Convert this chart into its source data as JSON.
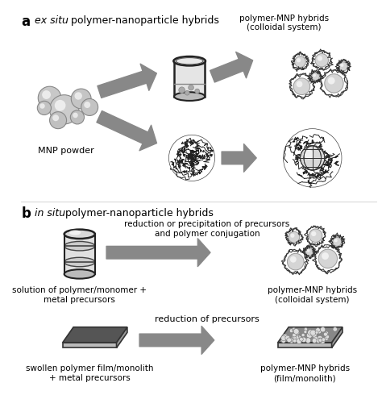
{
  "label_a": "a",
  "label_b": "b",
  "title_a_italic": "ex situ",
  "title_a_rest": " polymer-nanoparticle hybrids",
  "title_b_italic": "in situ",
  "title_b_rest": " polymer-nanoparticle hybrids",
  "label_mnp": "MNP powder",
  "label_colloidal_a": "polymer-MNP hybrids\n(colloidal system)",
  "label_solution": "solution of polymer/monomer +\nmetal precursors",
  "label_colloidal_b": "polymer-MNP hybrids\n(colloidal system)",
  "label_reduction": "reduction or precipitation of precursors\nand polymer conjugation",
  "label_film_in": "swollen polymer film/monolith\n+ metal precursors",
  "label_film_out": "polymer-MNP hybrids\n(film/monolith)",
  "label_reduction2": "reduction of precursors",
  "bg_color": "#ffffff",
  "arrow_color": "#909090",
  "text_color": "#000000"
}
